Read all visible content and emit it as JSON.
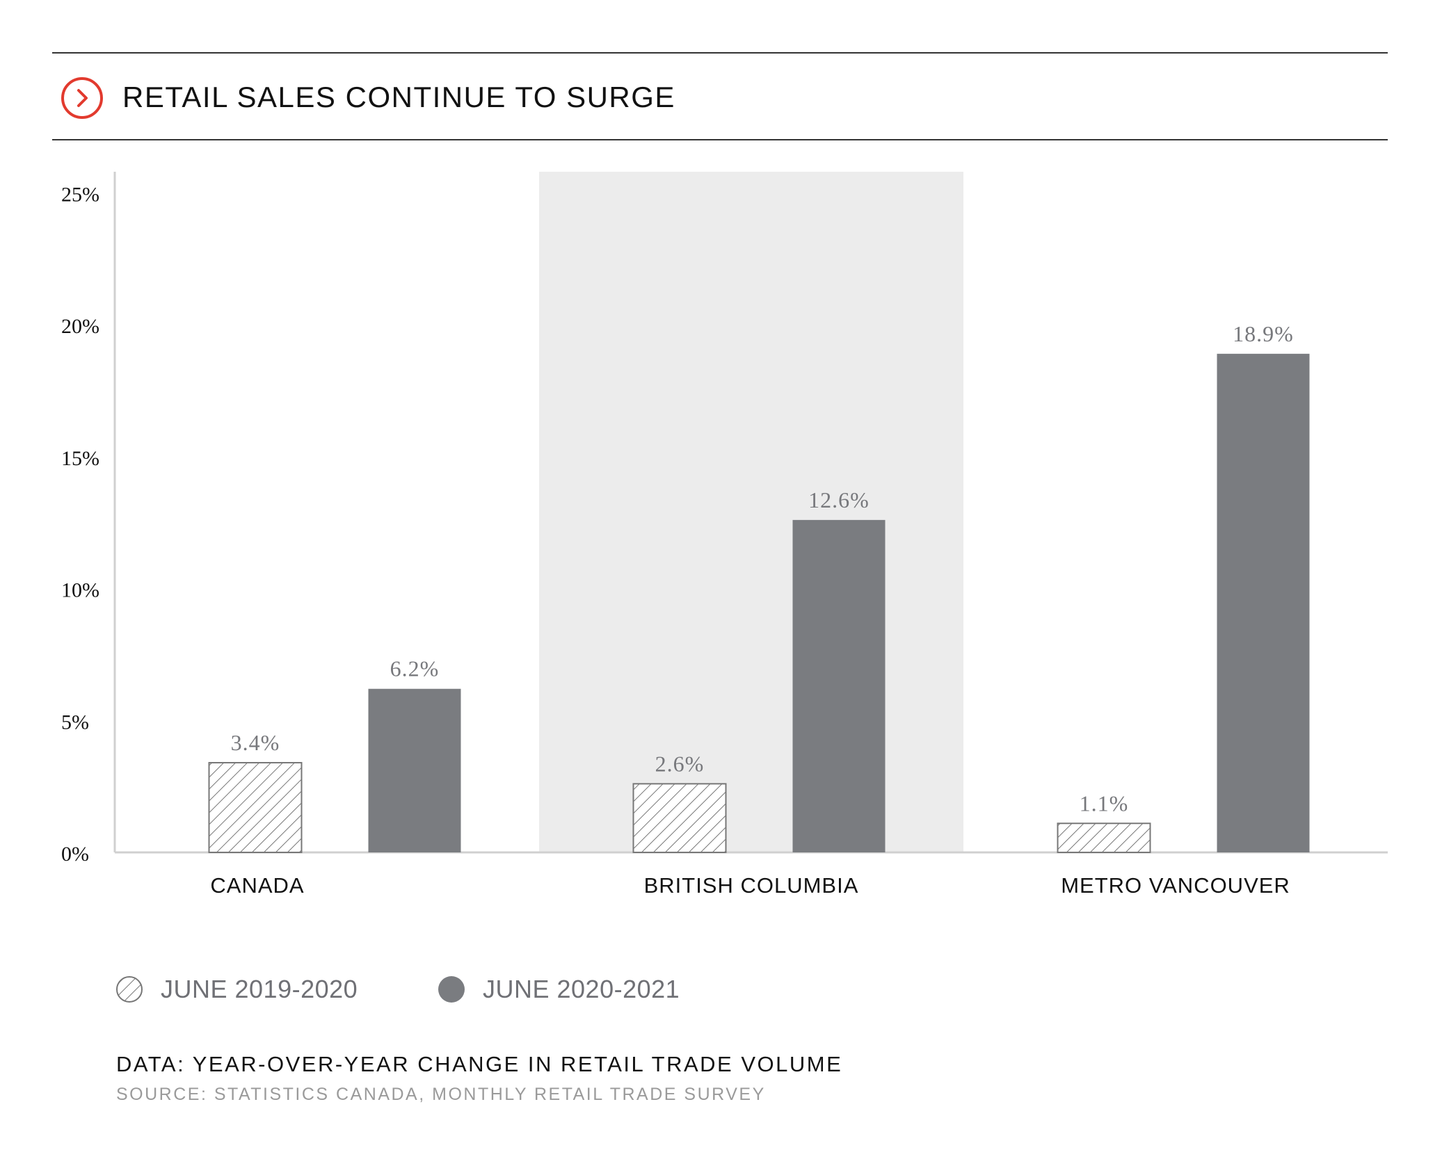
{
  "header": {
    "title": "RETAIL SALES CONTINUE TO SURGE",
    "icon": "chevron-right-circle-icon",
    "accent_color": "#e23a2e"
  },
  "legend": {
    "items": [
      {
        "label": "JUNE 2019-2020",
        "style": "hatched",
        "color": "#ffffff"
      },
      {
        "label": "JUNE 2020-2021",
        "style": "solid",
        "color": "#7a7c80"
      }
    ]
  },
  "footer": {
    "note": "DATA: YEAR-OVER-YEAR CHANGE IN RETAIL TRADE VOLUME",
    "source": "SOURCE: STATISTICS CANADA, MONTHLY RETAIL TRADE SURVEY"
  },
  "chart_data": {
    "type": "bar",
    "title": "RETAIL SALES CONTINUE TO SURGE",
    "xlabel": "",
    "ylabel": "",
    "categories": [
      "CANADA",
      "BRITISH COLUMBIA",
      "METRO VANCOUVER"
    ],
    "series": [
      {
        "name": "JUNE 2019-2020",
        "values": [
          3.4,
          2.6,
          1.1
        ],
        "labels": [
          "3.4%",
          "2.6%",
          "1.1%"
        ],
        "fill": "hatched"
      },
      {
        "name": "JUNE 2020-2021",
        "values": [
          6.2,
          12.6,
          18.9
        ],
        "labels": [
          "6.2%",
          "12.6%",
          "18.9%"
        ],
        "fill": "#7a7c80"
      }
    ],
    "ylim": [
      0,
      25.8
    ],
    "yticks": [
      0,
      5,
      10,
      15,
      20,
      25
    ],
    "ytick_labels": [
      "0%",
      "5%",
      "10%",
      "15%",
      "20%",
      "25%"
    ],
    "highlighted_category": "BRITISH COLUMBIA",
    "highlight_color": "#ececec",
    "grid": false
  }
}
